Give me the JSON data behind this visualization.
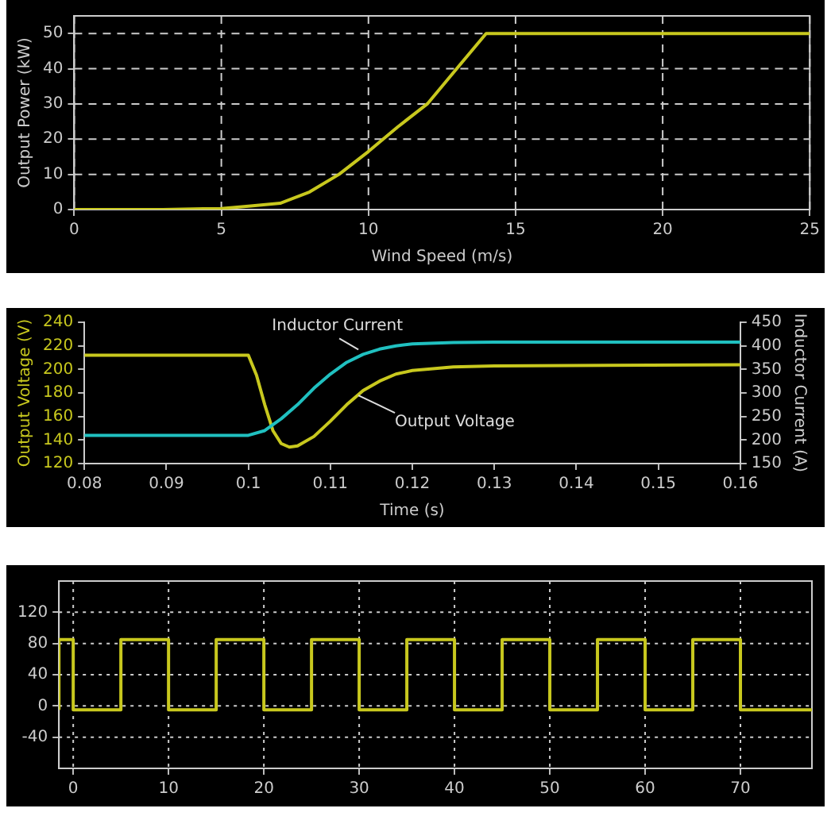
{
  "chart_data": [
    {
      "type": "line",
      "xlabel": "Wind Speed (m/s)",
      "ylabel": "Output Power (kW)",
      "xlim": [
        0,
        25
      ],
      "xticks": [
        0,
        5,
        10,
        15,
        20,
        25
      ],
      "ylim": [
        0,
        55
      ],
      "yticks": [
        0,
        10,
        20,
        30,
        40,
        50
      ],
      "grid": true,
      "x": [
        0,
        3,
        5,
        6,
        7,
        8,
        9,
        10,
        11,
        12,
        13,
        14,
        25
      ],
      "series": [
        {
          "color": "#c8c81e",
          "values": [
            0,
            0,
            0.3,
            1,
            1.8,
            5,
            10,
            16.5,
            23.5,
            30,
            40,
            50,
            50
          ]
        }
      ]
    },
    {
      "type": "line",
      "xlabel": "Time (s)",
      "ylabel": "Output Voltage (V)",
      "y2label": "Inductor Current (A)",
      "xlim": [
        0.08,
        0.16
      ],
      "xticks": [
        0.08,
        0.09,
        0.1,
        0.11,
        0.12,
        0.13,
        0.14,
        0.15,
        0.16
      ],
      "ylim": [
        120,
        240
      ],
      "yticks": [
        120,
        140,
        160,
        180,
        200,
        220,
        240
      ],
      "y2lim": [
        150,
        450
      ],
      "y2ticks": [
        150,
        200,
        250,
        300,
        350,
        400,
        450
      ],
      "series": [
        {
          "name": "Inductor Current",
          "axis": "y2",
          "color": "#20c0c0",
          "x": [
            0.08,
            0.1,
            0.102,
            0.104,
            0.106,
            0.108,
            0.11,
            0.112,
            0.114,
            0.116,
            0.118,
            0.12,
            0.125,
            0.13,
            0.16
          ],
          "values": [
            210,
            210,
            220,
            245,
            275,
            310,
            340,
            365,
            382,
            393,
            400,
            404,
            407,
            408,
            408
          ]
        },
        {
          "name": "Output Voltage",
          "color": "#c8c81e",
          "x": [
            0.08,
            0.1,
            0.101,
            0.102,
            0.103,
            0.104,
            0.105,
            0.106,
            0.108,
            0.11,
            0.112,
            0.114,
            0.116,
            0.118,
            0.12,
            0.125,
            0.13,
            0.16
          ],
          "values": [
            212,
            212,
            195,
            170,
            148,
            137,
            134,
            135,
            143,
            156,
            170,
            182,
            190,
            196,
            199,
            202,
            203,
            204
          ]
        }
      ]
    },
    {
      "type": "step",
      "xlim": [
        -1.5,
        77.5
      ],
      "xticks": [
        0,
        10,
        20,
        30,
        40,
        50,
        60,
        70
      ],
      "ylim": [
        -80,
        160
      ],
      "yticks": [
        -40,
        0,
        40,
        80,
        120
      ],
      "grid": true,
      "x": [
        -1.5,
        0,
        5,
        10,
        15,
        20,
        25,
        30,
        35,
        40,
        45,
        50,
        55,
        60,
        65,
        70,
        75,
        77.5
      ],
      "series": [
        {
          "color": "#c8c81e",
          "values": [
            -5,
            85,
            -5,
            85,
            -5,
            85,
            -5,
            85,
            -5,
            85,
            -5,
            85,
            -5,
            85,
            -5,
            85,
            -5,
            -5
          ]
        }
      ]
    }
  ]
}
